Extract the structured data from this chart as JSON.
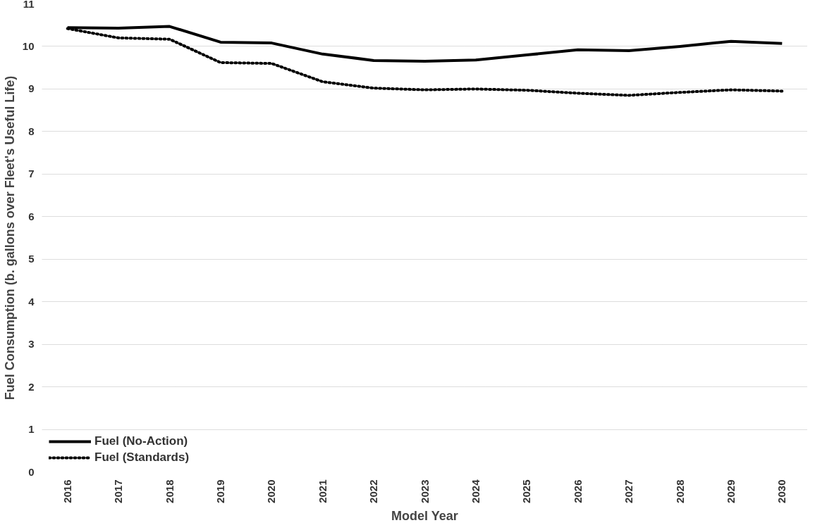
{
  "chart_data": {
    "type": "line",
    "xlabel": "Model Year",
    "ylabel": "Fuel Consumption (b. gallons over Fleet's Useful Life)",
    "categories": [
      "2016",
      "2017",
      "2018",
      "2019",
      "2020",
      "2021",
      "2022",
      "2023",
      "2024",
      "2025",
      "2026",
      "2027",
      "2028",
      "2029",
      "2030"
    ],
    "ylim": [
      0,
      11
    ],
    "yticks": [
      0,
      1,
      2,
      3,
      4,
      5,
      6,
      7,
      8,
      9,
      10,
      11
    ],
    "grid": "y",
    "legend": "bottom left",
    "series": [
      {
        "name": "Fuel (No-Action)",
        "color": "#000000",
        "line_style": "solid",
        "values": [
          10.44,
          10.43,
          10.47,
          10.1,
          10.08,
          9.82,
          9.67,
          9.65,
          9.68,
          9.8,
          9.92,
          9.9,
          10.0,
          10.12,
          10.07
        ]
      },
      {
        "name": "Fuel (Standards)",
        "color": "#000000",
        "line_style": "dotted",
        "values": [
          10.42,
          10.2,
          10.17,
          9.62,
          9.6,
          9.17,
          9.02,
          8.98,
          9.0,
          8.97,
          8.9,
          8.85,
          8.92,
          8.98,
          8.95
        ]
      }
    ]
  }
}
